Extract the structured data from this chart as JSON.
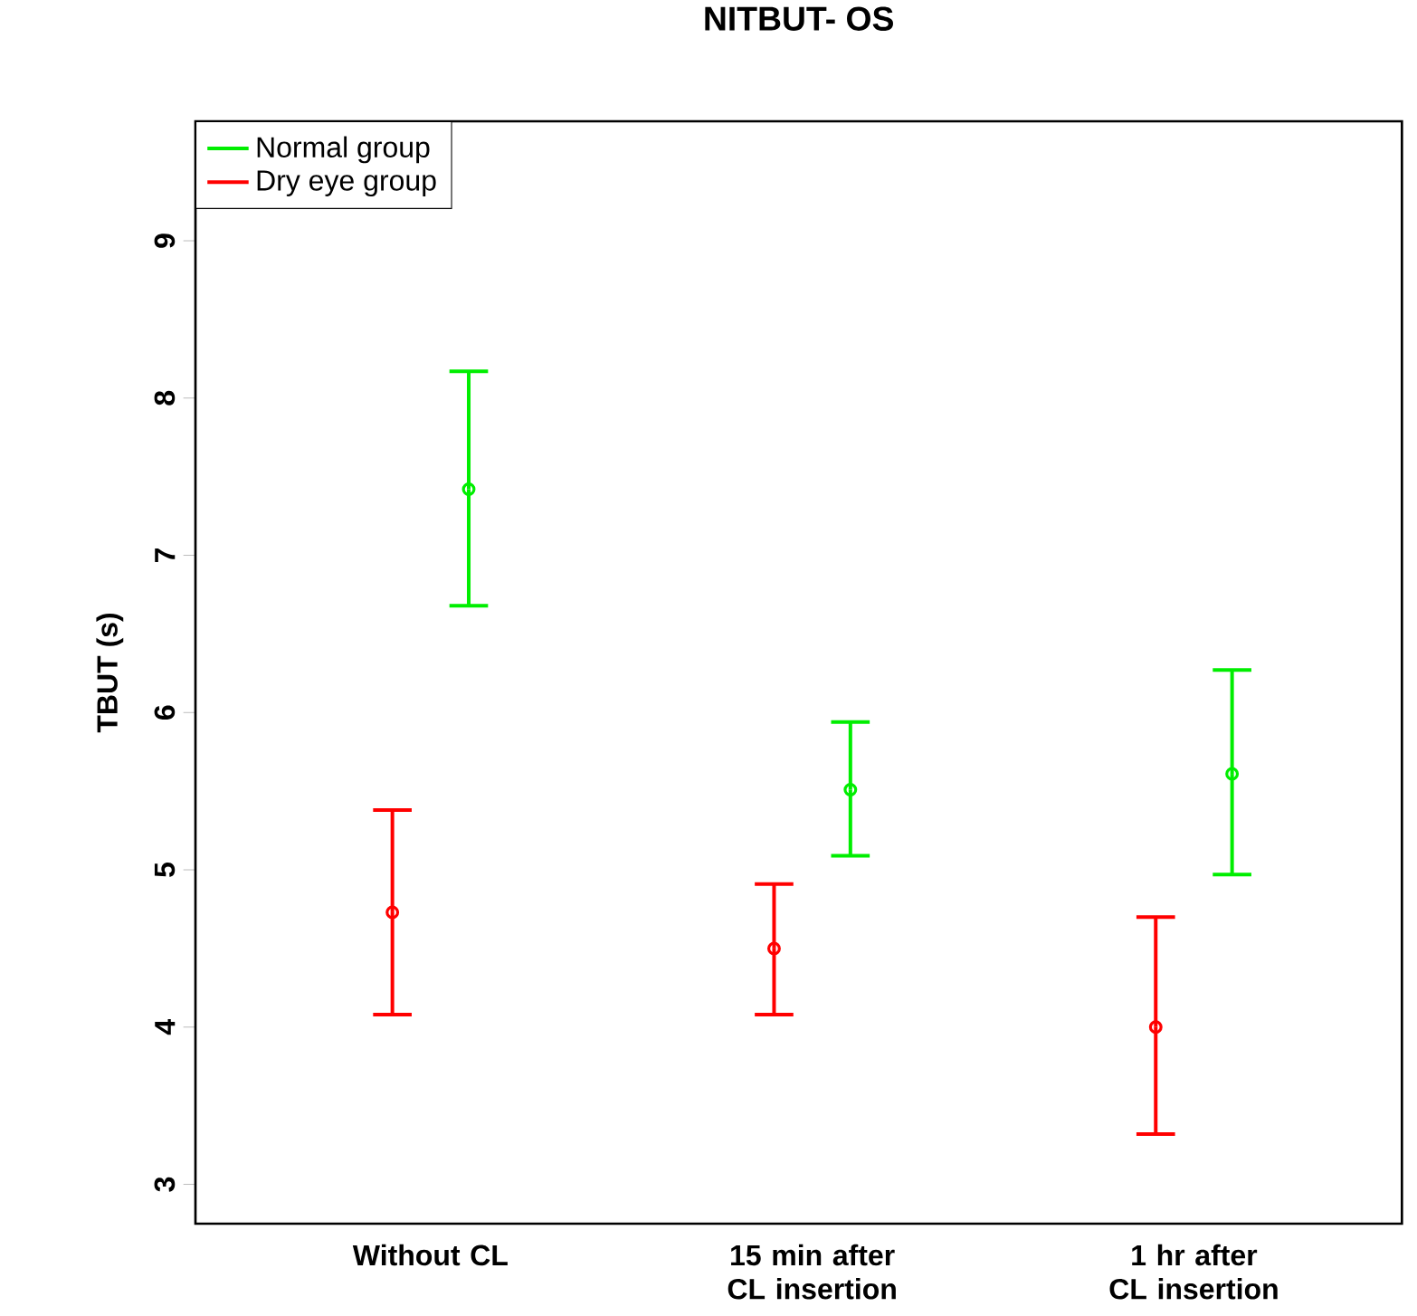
{
  "chart_data": {
    "type": "scatter",
    "title": "NITBUT- OS",
    "ylabel": "TBUT (s)",
    "categories": [
      "Without CL",
      "15 min after CL insertion",
      "1 hr after CL insertion"
    ],
    "series": [
      {
        "name": "Normal group",
        "color": "#00ee00",
        "values": [
          7.42,
          5.51,
          5.61
        ],
        "errors": [
          [
            6.68,
            8.17
          ],
          [
            5.09,
            5.94
          ],
          [
            4.97,
            6.27
          ]
        ]
      },
      {
        "name": "Dry eye group",
        "color": "#ff0000",
        "values": [
          4.73,
          4.5,
          4.0
        ],
        "errors": [
          [
            4.08,
            5.38
          ],
          [
            4.08,
            4.91
          ],
          [
            3.32,
            4.7
          ]
        ]
      }
    ],
    "ylim": [
      2.75,
      9.76
    ],
    "yticks": [
      3,
      4,
      5,
      6,
      7,
      8,
      9
    ],
    "marker": "circle",
    "legend": "top left",
    "grid": false
  }
}
